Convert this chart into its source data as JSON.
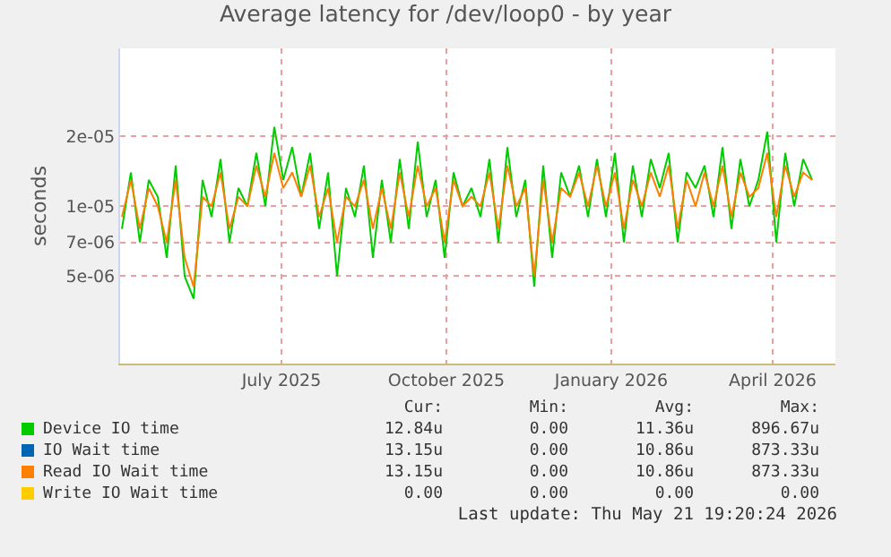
{
  "chart_data": {
    "type": "line",
    "title": "Average latency for /dev/loop0 - by year",
    "ylabel": "seconds",
    "log": "y",
    "grid": true,
    "legend": "bottom",
    "xlim": [
      "2025-04-02",
      "2026-05-06"
    ],
    "xticks": [
      {
        "value": "2025-07-01",
        "label": "July 2025"
      },
      {
        "value": "2025-10-01",
        "label": "October 2025"
      },
      {
        "value": "2026-01-01",
        "label": "January 2026"
      },
      {
        "value": "2026-04-01",
        "label": "April 2026"
      }
    ],
    "ylim": [
      2.1e-06,
      4.8e-05
    ],
    "yticks": [
      {
        "value": 5e-06,
        "label": "5e-06"
      },
      {
        "value": 7e-06,
        "label": "7e-06"
      },
      {
        "value": 1e-05,
        "label": "1e-05"
      },
      {
        "value": 2e-05,
        "label": "2e-05"
      }
    ],
    "x": [
      "2025-04-03",
      "2025-04-08",
      "2025-04-13",
      "2025-04-18",
      "2025-04-23",
      "2025-04-28",
      "2025-05-03",
      "2025-05-08",
      "2025-05-13",
      "2025-05-18",
      "2025-05-23",
      "2025-05-28",
      "2025-06-02",
      "2025-06-07",
      "2025-06-12",
      "2025-06-17",
      "2025-06-22",
      "2025-06-27",
      "2025-07-02",
      "2025-07-07",
      "2025-07-12",
      "2025-07-17",
      "2025-07-22",
      "2025-07-27",
      "2025-08-01",
      "2025-08-06",
      "2025-08-11",
      "2025-08-16",
      "2025-08-21",
      "2025-08-26",
      "2025-08-31",
      "2025-09-05",
      "2025-09-10",
      "2025-09-15",
      "2025-09-20",
      "2025-09-25",
      "2025-09-30",
      "2025-10-05",
      "2025-10-10",
      "2025-10-15",
      "2025-10-20",
      "2025-10-25",
      "2025-10-30",
      "2025-11-04",
      "2025-11-09",
      "2025-11-14",
      "2025-11-19",
      "2025-11-24",
      "2025-11-29",
      "2025-12-04",
      "2025-12-09",
      "2025-12-14",
      "2025-12-19",
      "2025-12-24",
      "2025-12-29",
      "2026-01-03",
      "2026-01-08",
      "2026-01-13",
      "2026-01-18",
      "2026-01-23",
      "2026-01-28",
      "2026-02-02",
      "2026-02-07",
      "2026-02-12",
      "2026-02-17",
      "2026-02-22",
      "2026-02-27",
      "2026-03-04",
      "2026-03-09",
      "2026-03-14",
      "2026-03-19",
      "2026-03-24",
      "2026-03-29",
      "2026-04-03",
      "2026-04-08",
      "2026-04-13",
      "2026-04-18",
      "2026-04-23"
    ],
    "series": [
      {
        "name": "Device IO time",
        "color": "#00cc00",
        "values": [
          8e-06,
          1.4e-05,
          7e-06,
          1.3e-05,
          1.1e-05,
          6e-06,
          1.5e-05,
          5e-06,
          4e-06,
          1.3e-05,
          9e-06,
          1.6e-05,
          7e-06,
          1.2e-05,
          1e-05,
          1.7e-05,
          1e-05,
          2.2e-05,
          1.3e-05,
          1.8e-05,
          1.1e-05,
          1.7e-05,
          8e-06,
          1.4e-05,
          5e-06,
          1.2e-05,
          9e-06,
          1.5e-05,
          6e-06,
          1.3e-05,
          7e-06,
          1.6e-05,
          8e-06,
          1.9e-05,
          9e-06,
          1.3e-05,
          6e-06,
          1.4e-05,
          1e-05,
          1.2e-05,
          9e-06,
          1.6e-05,
          7e-06,
          1.8e-05,
          9e-06,
          1.3e-05,
          4.5e-06,
          1.5e-05,
          6e-06,
          1.4e-05,
          1.1e-05,
          1.5e-05,
          9e-06,
          1.6e-05,
          9e-06,
          1.7e-05,
          7e-06,
          1.5e-05,
          9e-06,
          1.6e-05,
          1.2e-05,
          1.7e-05,
          7e-06,
          1.4e-05,
          1.2e-05,
          1.5e-05,
          9e-06,
          1.8e-05,
          8e-06,
          1.6e-05,
          1e-05,
          1.3e-05,
          2.1e-05,
          7e-06,
          1.7e-05,
          1e-05,
          1.6e-05,
          1.3e-05
        ]
      },
      {
        "name": "IO Wait time",
        "color": "#0066b3",
        "values": [
          null,
          null,
          null,
          null,
          null,
          null,
          null,
          null,
          null,
          null,
          null,
          null,
          null,
          null,
          null,
          null,
          null,
          null,
          null,
          null,
          null,
          null,
          null,
          null,
          null,
          null,
          null,
          null,
          null,
          null,
          null,
          null,
          null,
          null,
          null,
          null,
          null,
          null,
          null,
          null,
          null,
          null,
          null,
          null,
          null,
          null,
          null,
          null,
          null,
          null,
          null,
          null,
          null,
          null,
          null,
          null,
          null,
          null,
          null,
          null,
          null,
          null,
          null,
          null,
          null,
          null,
          null,
          null,
          null,
          null,
          null,
          null,
          null,
          null,
          null,
          null,
          null,
          null
        ]
      },
      {
        "name": "Read IO Wait time",
        "color": "#ff8000",
        "values": [
          9e-06,
          1.3e-05,
          8e-06,
          1.2e-05,
          1e-05,
          7e-06,
          1.3e-05,
          6e-06,
          4.5e-06,
          1.1e-05,
          1e-05,
          1.4e-05,
          8e-06,
          1.1e-05,
          1e-05,
          1.5e-05,
          1.1e-05,
          1.7e-05,
          1.2e-05,
          1.4e-05,
          1.1e-05,
          1.5e-05,
          9e-06,
          1.2e-05,
          7e-06,
          1.1e-05,
          1e-05,
          1.3e-05,
          8e-06,
          1.2e-05,
          8e-06,
          1.4e-05,
          9e-06,
          1.5e-05,
          1e-05,
          1.2e-05,
          7e-06,
          1.3e-05,
          1e-05,
          1.1e-05,
          1e-05,
          1.4e-05,
          8e-06,
          1.5e-05,
          1e-05,
          1.2e-05,
          5e-06,
          1.3e-05,
          7e-06,
          1.2e-05,
          1.1e-05,
          1.4e-05,
          1e-05,
          1.5e-05,
          1e-05,
          1.4e-05,
          8e-06,
          1.3e-05,
          1e-05,
          1.4e-05,
          1.1e-05,
          1.5e-05,
          8e-06,
          1.3e-05,
          1e-05,
          1.4e-05,
          1e-05,
          1.5e-05,
          9e-06,
          1.4e-05,
          1.1e-05,
          1.2e-05,
          1.7e-05,
          9e-06,
          1.5e-05,
          1.1e-05,
          1.4e-05,
          1.3e-05
        ]
      },
      {
        "name": "Write IO Wait time",
        "color": "#ffcc00",
        "values": [
          null,
          null,
          null,
          null,
          null,
          null,
          null,
          null,
          null,
          null,
          null,
          null,
          null,
          null,
          null,
          null,
          null,
          null,
          null,
          null,
          null,
          null,
          null,
          null,
          null,
          null,
          null,
          null,
          null,
          null,
          null,
          null,
          null,
          null,
          null,
          null,
          null,
          null,
          null,
          null,
          null,
          null,
          null,
          null,
          null,
          null,
          null,
          null,
          null,
          null,
          null,
          null,
          null,
          null,
          null,
          null,
          null,
          null,
          null,
          null,
          null,
          null,
          null,
          null,
          null,
          null,
          null,
          null,
          null,
          null,
          null,
          null,
          null,
          null,
          null,
          null,
          null,
          null
        ]
      }
    ],
    "annotations": [
      "Cur:",
      "Min:",
      "Avg:",
      "Max:",
      "12.84u",
      "0.00",
      "11.36u",
      "896.67u",
      "13.15u",
      "0.00",
      "10.86u",
      "873.33u",
      "13.15u",
      "0.00",
      "10.86u",
      "873.33u",
      "0.00",
      "0.00",
      "0.00",
      "0.00",
      "Last update: Thu May 21 19:20:24 2026"
    ]
  }
}
